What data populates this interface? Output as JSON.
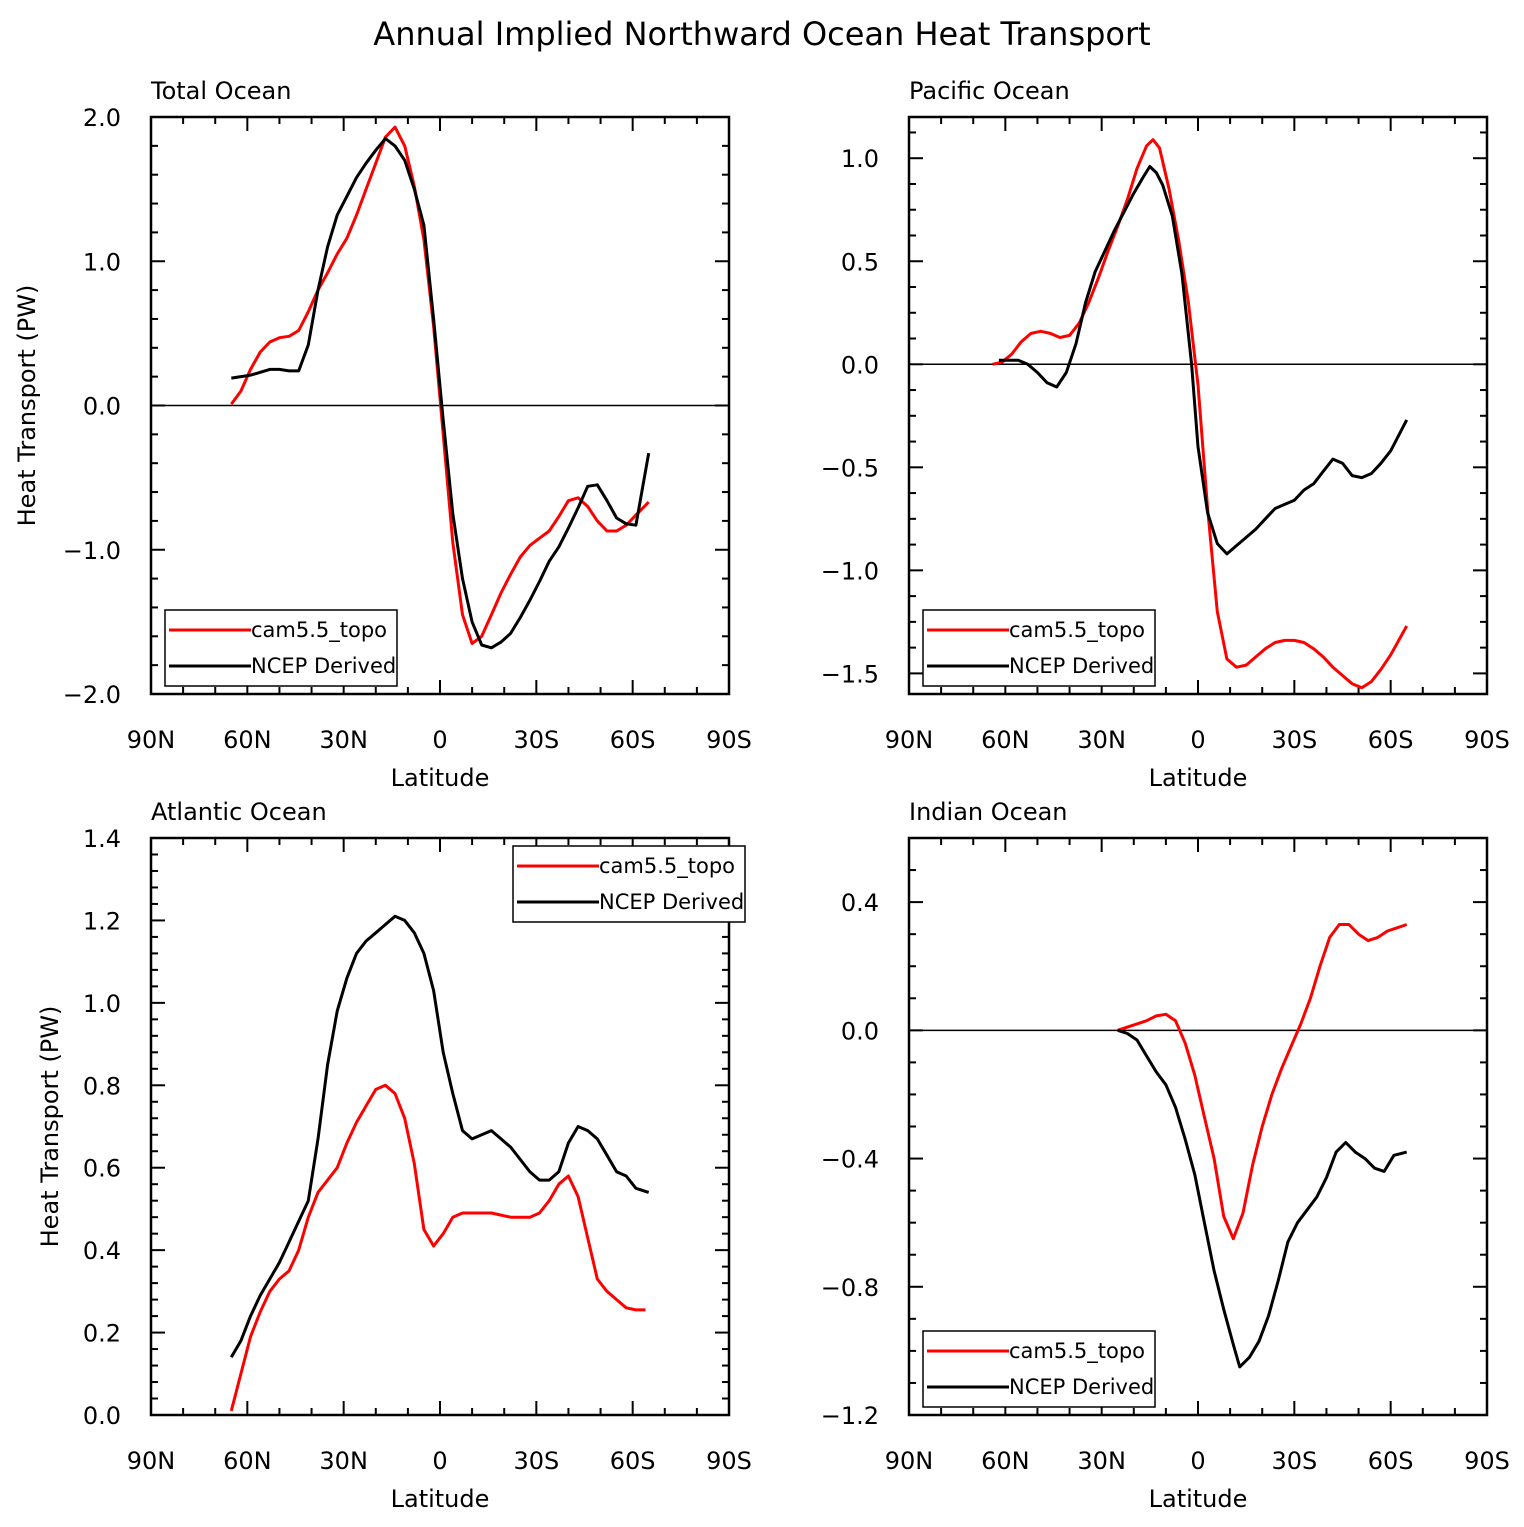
{
  "figure_title": "Annual Implied Northward Ocean Heat Transport",
  "colors": {
    "model": "#ff0000",
    "obs": "#000000"
  },
  "chart_data": [
    {
      "type": "line",
      "panel_title": "Total Ocean",
      "xlabel": "Latitude",
      "ylabel": "Heat Transport (PW)",
      "xlim": [
        90,
        -90
      ],
      "ylim": [
        -2.0,
        2.0
      ],
      "xticks": [
        90,
        60,
        30,
        0,
        -30,
        -60,
        -90
      ],
      "xtick_labels": [
        "90N",
        "60N",
        "30N",
        "0",
        "30S",
        "60S",
        "90S"
      ],
      "yticks": [
        -2.0,
        -1.0,
        0.0,
        1.0,
        2.0
      ],
      "ytick_labels": [
        "−2.0",
        "−1.0",
        "0.0",
        "1.0",
        "2.0"
      ],
      "zero_line": true,
      "legend": {
        "position": "bottom-left",
        "entries": [
          "cam5.5_topo",
          "NCEP Derived"
        ]
      },
      "series": [
        {
          "name": "cam5.5_topo",
          "color": "#ff0000",
          "x": [
            65,
            62,
            59,
            56,
            53,
            50,
            47,
            44,
            41,
            38,
            35,
            32,
            29,
            26,
            23,
            20,
            17,
            14,
            11,
            8,
            5,
            2,
            -1,
            -4,
            -7,
            -10,
            -13,
            -16,
            -19,
            -22,
            -25,
            -28,
            -31,
            -34,
            -37,
            -40,
            -43,
            -46,
            -49,
            -52,
            -55,
            -58,
            -61,
            -65
          ],
          "y": [
            0.01,
            0.1,
            0.25,
            0.37,
            0.44,
            0.47,
            0.48,
            0.52,
            0.65,
            0.8,
            0.92,
            1.05,
            1.16,
            1.32,
            1.5,
            1.68,
            1.86,
            1.93,
            1.8,
            1.52,
            1.15,
            0.55,
            -0.2,
            -0.95,
            -1.45,
            -1.65,
            -1.6,
            -1.45,
            -1.3,
            -1.17,
            -1.05,
            -0.97,
            -0.92,
            -0.87,
            -0.77,
            -0.66,
            -0.64,
            -0.7,
            -0.8,
            -0.87,
            -0.87,
            -0.83,
            -0.76,
            -0.67
          ]
        },
        {
          "name": "NCEP Derived",
          "color": "#000000",
          "x": [
            65,
            62,
            59,
            56,
            53,
            50,
            47,
            44,
            41,
            38,
            35,
            32,
            29,
            26,
            23,
            20,
            17,
            14,
            11,
            8,
            5,
            2,
            -1,
            -4,
            -7,
            -10,
            -13,
            -16,
            -19,
            -22,
            -25,
            -28,
            -31,
            -34,
            -37,
            -40,
            -43,
            -46,
            -49,
            -52,
            -55,
            -58,
            -61,
            -65
          ],
          "y": [
            0.19,
            0.2,
            0.21,
            0.23,
            0.25,
            0.25,
            0.24,
            0.24,
            0.42,
            0.8,
            1.1,
            1.32,
            1.45,
            1.58,
            1.68,
            1.77,
            1.85,
            1.8,
            1.7,
            1.5,
            1.25,
            0.6,
            -0.1,
            -0.75,
            -1.2,
            -1.5,
            -1.66,
            -1.68,
            -1.64,
            -1.58,
            -1.47,
            -1.35,
            -1.22,
            -1.08,
            -0.98,
            -0.85,
            -0.71,
            -0.56,
            -0.55,
            -0.66,
            -0.78,
            -0.82,
            -0.83,
            -0.33
          ]
        }
      ]
    },
    {
      "type": "line",
      "panel_title": "Pacific Ocean",
      "xlabel": "Latitude",
      "ylabel": "",
      "xlim": [
        90,
        -90
      ],
      "ylim": [
        -1.6,
        1.2
      ],
      "xticks": [
        90,
        60,
        30,
        0,
        -30,
        -60,
        -90
      ],
      "xtick_labels": [
        "90N",
        "60N",
        "30N",
        "0",
        "30S",
        "60S",
        "90S"
      ],
      "yticks": [
        -1.5,
        -1.0,
        -0.5,
        0.0,
        0.5,
        1.0
      ],
      "ytick_labels": [
        "−1.5",
        "−1.0",
        "−0.5",
        "0.0",
        "0.5",
        "1.0"
      ],
      "zero_line": true,
      "legend": {
        "position": "bottom-left",
        "entries": [
          "cam5.5_topo",
          "NCEP Derived"
        ]
      },
      "series": [
        {
          "name": "cam5.5_topo",
          "color": "#ff0000",
          "x": [
            64,
            61,
            58,
            55,
            52,
            49,
            46,
            43,
            40,
            37,
            34,
            31,
            28,
            25,
            22,
            19,
            16,
            14,
            12,
            9,
            6,
            3,
            0,
            -3,
            -6,
            -9,
            -12,
            -15,
            -18,
            -21,
            -24,
            -27,
            -30,
            -33,
            -36,
            -39,
            -42,
            -45,
            -48,
            -51,
            -54,
            -57,
            -60,
            -65
          ],
          "y": [
            0.0,
            0.01,
            0.05,
            0.11,
            0.15,
            0.16,
            0.15,
            0.13,
            0.14,
            0.2,
            0.3,
            0.42,
            0.55,
            0.67,
            0.8,
            0.95,
            1.06,
            1.09,
            1.05,
            0.85,
            0.6,
            0.3,
            -0.1,
            -0.7,
            -1.2,
            -1.43,
            -1.47,
            -1.46,
            -1.42,
            -1.38,
            -1.35,
            -1.34,
            -1.34,
            -1.35,
            -1.38,
            -1.42,
            -1.47,
            -1.51,
            -1.55,
            -1.57,
            -1.54,
            -1.48,
            -1.41,
            -1.27
          ]
        },
        {
          "name": "NCEP Derived",
          "color": "#000000",
          "x": [
            62,
            59,
            56,
            53,
            50,
            47,
            44,
            41,
            38,
            35,
            32,
            29,
            26,
            23,
            20,
            17,
            15,
            13,
            11,
            8,
            5,
            2,
            0,
            -3,
            -6,
            -9,
            -12,
            -15,
            -18,
            -21,
            -24,
            -27,
            -30,
            -33,
            -36,
            -39,
            -42,
            -45,
            -48,
            -51,
            -54,
            -57,
            -60,
            -63,
            -65
          ],
          "y": [
            0.02,
            0.02,
            0.02,
            0.0,
            -0.04,
            -0.09,
            -0.11,
            -0.04,
            0.1,
            0.3,
            0.45,
            0.55,
            0.65,
            0.74,
            0.83,
            0.91,
            0.96,
            0.93,
            0.87,
            0.72,
            0.44,
            0.0,
            -0.4,
            -0.72,
            -0.87,
            -0.92,
            -0.88,
            -0.84,
            -0.8,
            -0.75,
            -0.7,
            -0.68,
            -0.66,
            -0.61,
            -0.58,
            -0.52,
            -0.46,
            -0.48,
            -0.54,
            -0.55,
            -0.53,
            -0.48,
            -0.42,
            -0.33,
            -0.27
          ]
        }
      ]
    },
    {
      "type": "line",
      "panel_title": "Atlantic Ocean",
      "xlabel": "Latitude",
      "ylabel": "Heat Transport (PW)",
      "xlim": [
        90,
        -90
      ],
      "ylim": [
        0.0,
        1.4
      ],
      "xticks": [
        90,
        60,
        30,
        0,
        -30,
        -60,
        -90
      ],
      "xtick_labels": [
        "90N",
        "60N",
        "30N",
        "0",
        "30S",
        "60S",
        "90S"
      ],
      "yticks": [
        0.0,
        0.2,
        0.4,
        0.6,
        0.8,
        1.0,
        1.2,
        1.4
      ],
      "ytick_labels": [
        "0.0",
        "0.2",
        "0.4",
        "0.6",
        "0.8",
        "1.0",
        "1.2",
        "1.4"
      ],
      "zero_line": false,
      "legend": {
        "position": "top-right",
        "entries": [
          "cam5.5_topo",
          "NCEP Derived"
        ]
      },
      "series": [
        {
          "name": "cam5.5_topo",
          "color": "#ff0000",
          "x": [
            65,
            62,
            59,
            56,
            53,
            50,
            47,
            44,
            41,
            38,
            35,
            32,
            29,
            26,
            23,
            20,
            17,
            14,
            11,
            8,
            5,
            2,
            -1,
            -4,
            -7,
            -10,
            -13,
            -16,
            -19,
            -22,
            -25,
            -28,
            -31,
            -34,
            -37,
            -40,
            -43,
            -46,
            -49,
            -52,
            -55,
            -58,
            -61,
            -64
          ],
          "y": [
            0.01,
            0.1,
            0.19,
            0.25,
            0.3,
            0.33,
            0.35,
            0.4,
            0.48,
            0.54,
            0.57,
            0.6,
            0.66,
            0.71,
            0.75,
            0.79,
            0.8,
            0.78,
            0.72,
            0.61,
            0.45,
            0.41,
            0.44,
            0.48,
            0.49,
            0.49,
            0.49,
            0.49,
            0.485,
            0.48,
            0.48,
            0.48,
            0.49,
            0.52,
            0.56,
            0.58,
            0.53,
            0.43,
            0.33,
            0.3,
            0.28,
            0.26,
            0.255,
            0.255
          ]
        },
        {
          "name": "NCEP Derived",
          "color": "#000000",
          "x": [
            65,
            62,
            59,
            56,
            53,
            50,
            47,
            44,
            41,
            38,
            35,
            32,
            29,
            26,
            23,
            20,
            17,
            14,
            11,
            8,
            5,
            2,
            -1,
            -4,
            -7,
            -10,
            -13,
            -16,
            -19,
            -22,
            -25,
            -28,
            -31,
            -34,
            -37,
            -40,
            -43,
            -46,
            -49,
            -52,
            -55,
            -58,
            -61,
            -65
          ],
          "y": [
            0.14,
            0.18,
            0.24,
            0.29,
            0.33,
            0.37,
            0.42,
            0.47,
            0.52,
            0.67,
            0.85,
            0.98,
            1.06,
            1.12,
            1.15,
            1.17,
            1.19,
            1.21,
            1.2,
            1.17,
            1.12,
            1.03,
            0.88,
            0.78,
            0.69,
            0.67,
            0.68,
            0.69,
            0.67,
            0.65,
            0.62,
            0.59,
            0.57,
            0.57,
            0.59,
            0.66,
            0.7,
            0.69,
            0.67,
            0.63,
            0.59,
            0.58,
            0.55,
            0.54
          ]
        }
      ]
    },
    {
      "type": "line",
      "panel_title": "Indian Ocean",
      "xlabel": "Latitude",
      "ylabel": "",
      "xlim": [
        90,
        -90
      ],
      "ylim": [
        -1.2,
        0.6
      ],
      "xticks": [
        90,
        60,
        30,
        0,
        -30,
        -60,
        -90
      ],
      "xtick_labels": [
        "90N",
        "60N",
        "30N",
        "0",
        "30S",
        "60S",
        "90S"
      ],
      "yticks": [
        -1.2,
        -0.8,
        -0.4,
        0.0,
        0.4
      ],
      "ytick_labels": [
        "−1.2",
        "−0.8",
        "−0.4",
        "0.0",
        "0.4"
      ],
      "zero_line": true,
      "legend": {
        "position": "bottom-left",
        "entries": [
          "cam5.5_topo",
          "NCEP Derived"
        ]
      },
      "series": [
        {
          "name": "cam5.5_topo",
          "color": "#ff0000",
          "x": [
            25,
            22,
            19,
            16,
            13,
            10,
            7,
            4,
            1,
            -2,
            -5,
            -8,
            -11,
            -14,
            -17,
            -20,
            -23,
            -26,
            -29,
            -32,
            -35,
            -38,
            -41,
            -44,
            -47,
            -50,
            -53,
            -56,
            -59,
            -62,
            -65
          ],
          "y": [
            0.0,
            0.01,
            0.02,
            0.03,
            0.045,
            0.05,
            0.03,
            -0.04,
            -0.14,
            -0.27,
            -0.4,
            -0.58,
            -0.65,
            -0.57,
            -0.42,
            -0.3,
            -0.2,
            -0.12,
            -0.05,
            0.02,
            0.1,
            0.2,
            0.29,
            0.33,
            0.33,
            0.3,
            0.28,
            0.29,
            0.31,
            0.32,
            0.33
          ]
        },
        {
          "name": "NCEP Derived",
          "color": "#000000",
          "x": [
            25,
            22,
            19,
            16,
            13,
            10,
            7,
            4,
            1,
            -2,
            -5,
            -8,
            -11,
            -13,
            -16,
            -19,
            -22,
            -25,
            -28,
            -31,
            -34,
            -37,
            -40,
            -43,
            -46,
            -49,
            -52,
            -55,
            -58,
            -61,
            -65
          ],
          "y": [
            0.0,
            -0.01,
            -0.03,
            -0.08,
            -0.13,
            -0.17,
            -0.24,
            -0.34,
            -0.45,
            -0.6,
            -0.75,
            -0.87,
            -0.98,
            -1.05,
            -1.02,
            -0.97,
            -0.89,
            -0.78,
            -0.66,
            -0.6,
            -0.56,
            -0.52,
            -0.46,
            -0.38,
            -0.35,
            -0.38,
            -0.4,
            -0.43,
            -0.44,
            -0.39,
            -0.38
          ]
        }
      ]
    }
  ]
}
